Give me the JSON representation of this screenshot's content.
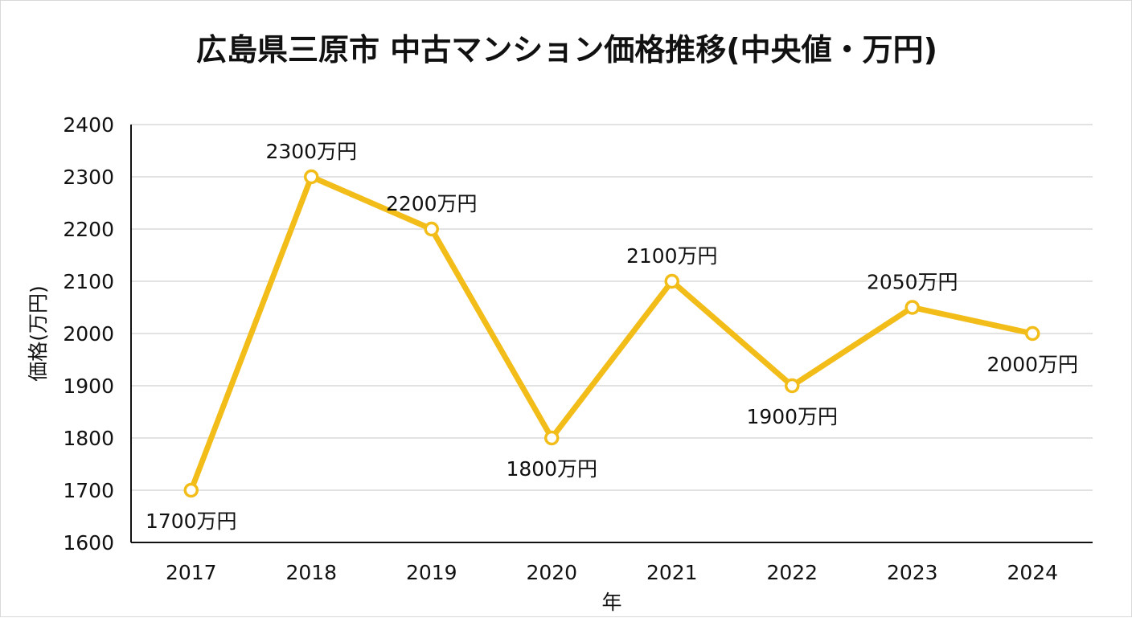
{
  "chart_data": {
    "type": "line",
    "title": "広島県三原市 中古マンション価格推移(中央値・万円)",
    "xlabel": "年",
    "ylabel": "価格(万円)",
    "categories": [
      "2017",
      "2018",
      "2019",
      "2020",
      "2021",
      "2022",
      "2023",
      "2024"
    ],
    "series": [
      {
        "values": [
          1700,
          2300,
          2200,
          1800,
          2100,
          1900,
          2050,
          2000
        ],
        "data_labels": [
          "1700万円",
          "2300万円",
          "2200万円",
          "1800万円",
          "2100万円",
          "1900万円",
          "2050万円",
          "2000万円"
        ],
        "label_positions": [
          "below",
          "above",
          "above",
          "below",
          "above",
          "below",
          "above",
          "below"
        ]
      }
    ],
    "ylim": [
      1600,
      2400
    ],
    "y_ticks": [
      "1600",
      "1700",
      "1800",
      "1900",
      "2000",
      "2100",
      "2200",
      "2300",
      "2400"
    ],
    "grid": true,
    "colors": {
      "line": "#f2bd19",
      "grid": "#d9d9d9",
      "axis": "#111111",
      "marker_fill": "#ffffff"
    }
  }
}
